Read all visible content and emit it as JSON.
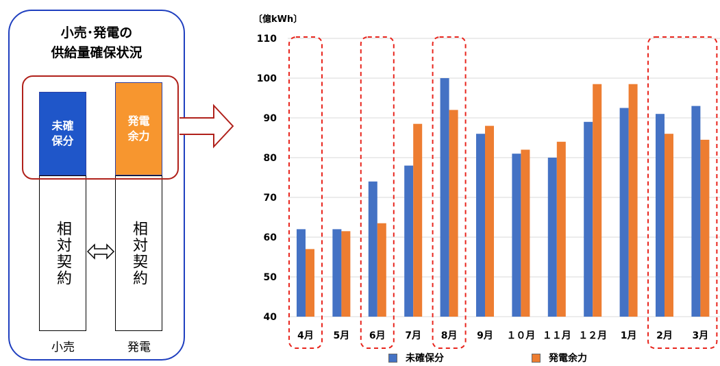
{
  "diagram": {
    "title": "小売･発電の\n供給量確保状況",
    "retail_top_label": "未確\n保分",
    "gen_top_label": "発電\n余力",
    "retail_column_text": "相対契約",
    "gen_column_text": "相対契約",
    "retail_foot_label": "小売",
    "gen_foot_label": "発電",
    "colors": {
      "frame": "#1f3fbf",
      "highlight": "#b0201a",
      "retail_top": "#1f56c9",
      "gen_top": "#f7962f"
    }
  },
  "chart_data": {
    "type": "bar",
    "unit_label": "〔億kWh〕",
    "categories": [
      "4月",
      "5月",
      "6月",
      "7月",
      "8月",
      "9月",
      "１０月",
      "１１月",
      "１２月",
      "1月",
      "2月",
      "3月"
    ],
    "series": [
      {
        "name": "未確保分",
        "color": "#4472c4",
        "values": [
          62,
          62,
          74,
          78,
          100,
          86,
          81,
          80,
          89,
          92.5,
          91,
          93
        ]
      },
      {
        "name": "発電余力",
        "color": "#ed7d31",
        "values": [
          57,
          61.5,
          63.5,
          88.5,
          92,
          88,
          82,
          84,
          98.5,
          98.5,
          86,
          84.5
        ]
      }
    ],
    "yticks": [
      40,
      50,
      60,
      70,
      80,
      90,
      100,
      110
    ],
    "ylim": [
      40,
      110
    ],
    "grid": true,
    "legend_position": "bottom",
    "highlighted_categories": [
      "4月",
      "6月",
      "8月",
      "2月",
      "3月"
    ]
  }
}
